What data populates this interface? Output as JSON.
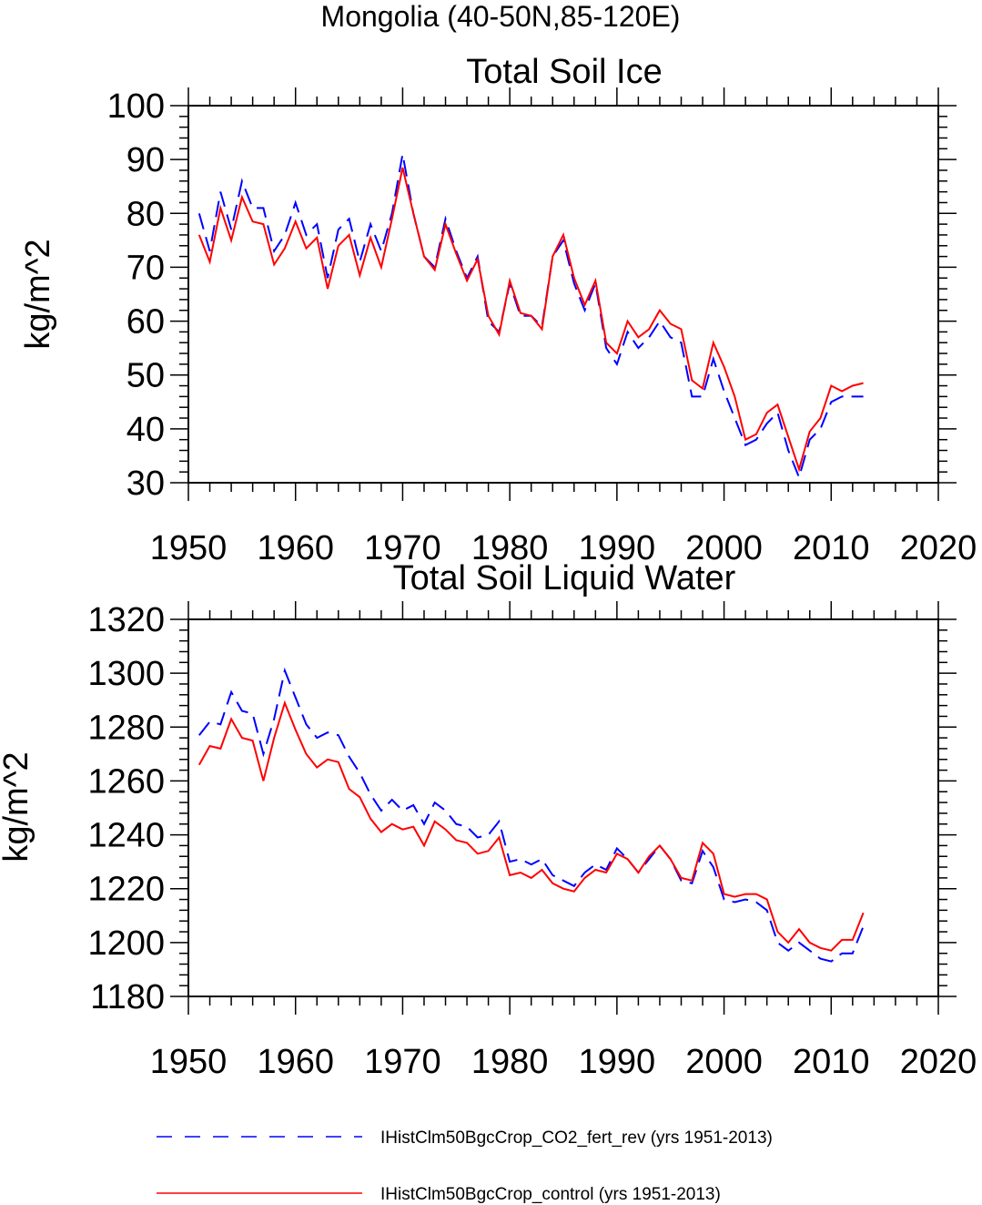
{
  "figure_title": "Mongolia (40-50N,85-120E)",
  "chart_data": [
    {
      "type": "line",
      "title": "Total Soil Ice",
      "xlabel": "",
      "ylabel": "kg/m^2",
      "xlim": [
        1950,
        2020
      ],
      "ylim": [
        30,
        100
      ],
      "xticks": [
        1950,
        1960,
        1970,
        1980,
        1990,
        2000,
        2010,
        2020
      ],
      "yticks": [
        30,
        40,
        50,
        60,
        70,
        80,
        90,
        100
      ],
      "x": [
        1951,
        1952,
        1953,
        1954,
        1955,
        1956,
        1957,
        1958,
        1959,
        1960,
        1961,
        1962,
        1963,
        1964,
        1965,
        1966,
        1967,
        1968,
        1969,
        1970,
        1971,
        1972,
        1973,
        1974,
        1975,
        1976,
        1977,
        1978,
        1979,
        1980,
        1981,
        1982,
        1983,
        1984,
        1985,
        1986,
        1987,
        1988,
        1989,
        1990,
        1991,
        1992,
        1993,
        1994,
        1995,
        1996,
        1997,
        1998,
        1999,
        2000,
        2001,
        2002,
        2003,
        2004,
        2005,
        2006,
        2007,
        2008,
        2009,
        2010,
        2011,
        2012,
        2013
      ],
      "series": [
        {
          "name": "IHistClm50BgcCrop_CO2_fert_rev (yrs 1951-2013)",
          "color": "#0000ff",
          "dash": "dashed",
          "values": [
            80,
            73,
            84,
            77,
            86,
            81,
            81,
            73,
            76,
            82,
            76,
            78,
            68,
            77,
            79,
            71,
            78,
            73,
            80,
            91,
            80,
            72,
            70,
            79,
            73,
            68,
            72,
            60,
            58,
            67,
            61,
            61,
            59,
            72,
            75,
            67,
            62,
            67,
            55,
            52,
            58,
            55,
            57,
            60,
            57,
            56,
            46,
            46,
            53,
            47,
            42,
            37,
            38,
            41,
            43,
            36,
            31,
            38,
            40,
            45,
            46,
            46,
            46
          ]
        },
        {
          "name": "IHistClm50BgcCrop_control (yrs 1951-2013)",
          "color": "#ff0000",
          "dash": "solid",
          "values": [
            76,
            71,
            81,
            75,
            83,
            78.5,
            78,
            70.5,
            73.5,
            78.5,
            73.5,
            75.5,
            66,
            74,
            76,
            68.5,
            75.5,
            70,
            79,
            88.5,
            80,
            72,
            69.5,
            78,
            72.5,
            67.5,
            71.5,
            61,
            57.5,
            67.5,
            61.5,
            61,
            58.5,
            72,
            76,
            68,
            63,
            67.5,
            56,
            54,
            60,
            57,
            58.5,
            62,
            59.5,
            58.5,
            49,
            47.5,
            56,
            51.5,
            46,
            38,
            39,
            43,
            44.5,
            38.5,
            32.5,
            39.5,
            42,
            48,
            47,
            48,
            48.5
          ]
        }
      ]
    },
    {
      "type": "line",
      "title": "Total Soil Liquid Water",
      "xlabel": "",
      "ylabel": "kg/m^2",
      "xlim": [
        1950,
        2020
      ],
      "ylim": [
        1180,
        1320
      ],
      "xticks": [
        1950,
        1960,
        1970,
        1980,
        1990,
        2000,
        2010,
        2020
      ],
      "yticks": [
        1180,
        1200,
        1220,
        1240,
        1260,
        1280,
        1300,
        1320
      ],
      "x": [
        1951,
        1952,
        1953,
        1954,
        1955,
        1956,
        1957,
        1958,
        1959,
        1960,
        1961,
        1962,
        1963,
        1964,
        1965,
        1966,
        1967,
        1968,
        1969,
        1970,
        1971,
        1972,
        1973,
        1974,
        1975,
        1976,
        1977,
        1978,
        1979,
        1980,
        1981,
        1982,
        1983,
        1984,
        1985,
        1986,
        1987,
        1988,
        1989,
        1990,
        1991,
        1992,
        1993,
        1994,
        1995,
        1996,
        1997,
        1998,
        1999,
        2000,
        2001,
        2002,
        2003,
        2004,
        2005,
        2006,
        2007,
        2008,
        2009,
        2010,
        2011,
        2012,
        2013
      ],
      "series": [
        {
          "name": "IHistClm50BgcCrop_CO2_fert_rev (yrs 1951-2013)",
          "color": "#0000ff",
          "dash": "dashed",
          "values": [
            1277,
            1282,
            1281,
            1293,
            1286,
            1285,
            1270,
            1283,
            1301,
            1291,
            1281,
            1276,
            1278,
            1277,
            1269,
            1263,
            1255,
            1249,
            1253,
            1249,
            1251,
            1244,
            1252,
            1249,
            1244,
            1243,
            1239,
            1240,
            1245,
            1230,
            1231,
            1229,
            1231,
            1225,
            1223,
            1221,
            1226,
            1229,
            1227,
            1235,
            1231,
            1226,
            1231,
            1236,
            1231,
            1223,
            1222,
            1234,
            1228,
            1216,
            1215,
            1216,
            1215,
            1212,
            1200,
            1197,
            1200,
            1197,
            1194,
            1193,
            1196,
            1196,
            1206
          ]
        },
        {
          "name": "IHistClm50BgcCrop_control (yrs 1951-2013)",
          "color": "#ff0000",
          "dash": "solid",
          "values": [
            1266,
            1273,
            1272,
            1283,
            1276,
            1275,
            1260,
            1276,
            1289,
            1279,
            1270,
            1265,
            1268,
            1267,
            1257,
            1254,
            1246,
            1241,
            1244,
            1242,
            1243,
            1236,
            1245,
            1242,
            1238,
            1237,
            1233,
            1234,
            1239,
            1225,
            1226,
            1224,
            1227,
            1222,
            1220,
            1219,
            1224,
            1227,
            1226,
            1233,
            1231,
            1226,
            1232,
            1236,
            1231,
            1224,
            1223,
            1237,
            1233,
            1218,
            1217,
            1218,
            1218,
            1216,
            1204,
            1200,
            1205,
            1200,
            1198,
            1197,
            1201,
            1201,
            1211
          ]
        }
      ]
    }
  ],
  "legend": [
    {
      "label": "IHistClm50BgcCrop_CO2_fert_rev (yrs 1951-2013)",
      "color": "#0000ff",
      "dash": "dashed"
    },
    {
      "label": "IHistClm50BgcCrop_control (yrs 1951-2013)",
      "color": "#ff0000",
      "dash": "solid"
    }
  ]
}
